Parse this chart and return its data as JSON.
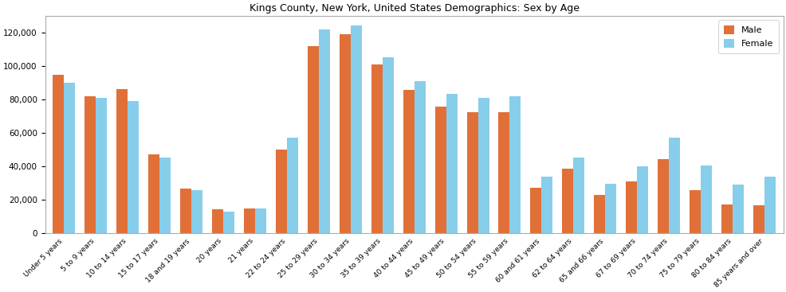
{
  "title": "Kings County, New York, United States Demographics: Sex by Age",
  "categories": [
    "Under 5 years",
    "5 to 9 years",
    "10 to 14 years",
    "15 to 17 years",
    "18 and 19 years",
    "20 years",
    "21 years",
    "22 to 24 years",
    "25 to 29 years",
    "30 to 34 years",
    "35 to 39 years",
    "40 to 44 years",
    "45 to 49 years",
    "50 to 54 years",
    "55 to 59 years",
    "60 and 61 years",
    "62 to 64 years",
    "65 and 66 years",
    "67 to 69 years",
    "70 to 74 years",
    "75 to 79 years",
    "80 to 84 years",
    "85 years and over"
  ],
  "male": [
    94500,
    82000,
    86000,
    47000,
    27000,
    14500,
    15000,
    50000,
    112000,
    119000,
    101000,
    85500,
    75500,
    72500,
    72500,
    27500,
    38500,
    23000,
    31000,
    44500,
    26000,
    17500,
    17000
  ],
  "female": [
    90000,
    81000,
    79000,
    45500,
    26000,
    13000,
    15000,
    57000,
    122000,
    124000,
    105000,
    91000,
    83500,
    81000,
    82000,
    34000,
    45500,
    29500,
    40000,
    57000,
    40500,
    29000,
    34000
  ],
  "male_color": "#E07038",
  "female_color": "#87CEEB",
  "ylim": [
    0,
    130000
  ],
  "yticks": [
    0,
    20000,
    40000,
    60000,
    80000,
    100000,
    120000
  ],
  "legend_labels": [
    "Male",
    "Female"
  ],
  "bar_width": 0.35,
  "title_fontsize": 9,
  "tick_fontsize": 6.5,
  "ytick_fontsize": 7.5
}
